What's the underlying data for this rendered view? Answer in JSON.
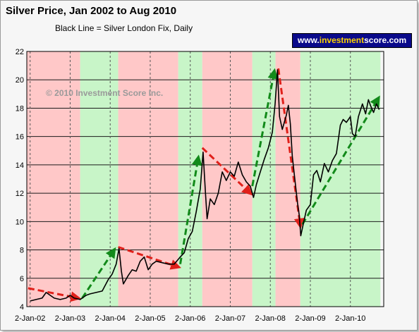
{
  "chart_data": {
    "type": "line",
    "title": "Silver Price, Jan 2002 to Aug 2010",
    "subtitle": "Black Line = Silver London Fix, Daily",
    "watermark": "© 2010 Investment Score Inc.",
    "brand": {
      "prefix": "www.",
      "highlight": "investment",
      "suffix": "score.com"
    },
    "ylim": [
      4,
      22
    ],
    "yticks": [
      4,
      6,
      8,
      10,
      12,
      14,
      16,
      18,
      20,
      22
    ],
    "xlim": [
      2001.917,
      2010.833
    ],
    "xticks": [
      {
        "label": "2-Jan-02",
        "x": 2002.0
      },
      {
        "label": "2-Jan-03",
        "x": 2003.0
      },
      {
        "label": "2-Jan-04",
        "x": 2004.0
      },
      {
        "label": "2-Jan-05",
        "x": 2005.0
      },
      {
        "label": "2-Jan-06",
        "x": 2006.0
      },
      {
        "label": "2-Jan-07",
        "x": 2007.0
      },
      {
        "label": "2-Jan-08",
        "x": 2008.0
      },
      {
        "label": "2-Jan-09",
        "x": 2009.0
      },
      {
        "label": "2-Jan-10",
        "x": 2010.0
      }
    ],
    "grid": true,
    "legend": "none",
    "colors": {
      "bear": "#ffc8c8",
      "bull": "#c8f5c8",
      "bear_arrow": "#e0201a",
      "bull_arrow": "#128a1a",
      "line": "#000000"
    },
    "regimes": [
      {
        "type": "bear",
        "start": 2001.917,
        "end": 2003.25
      },
      {
        "type": "bull",
        "start": 2003.25,
        "end": 2004.2
      },
      {
        "type": "bear",
        "start": 2004.2,
        "end": 2005.7
      },
      {
        "type": "bull",
        "start": 2005.7,
        "end": 2006.3
      },
      {
        "type": "bear",
        "start": 2006.3,
        "end": 2007.55
      },
      {
        "type": "bull",
        "start": 2007.55,
        "end": 2008.13
      },
      {
        "type": "bear",
        "start": 2008.13,
        "end": 2008.75
      },
      {
        "type": "bull",
        "start": 2008.75,
        "end": 2010.75
      }
    ],
    "trend_arrows": [
      {
        "type": "bear",
        "from": [
          2001.95,
          5.3
        ],
        "to": [
          2003.2,
          4.6
        ]
      },
      {
        "type": "bull",
        "from": [
          2003.3,
          4.6
        ],
        "to": [
          2004.1,
          8.0
        ]
      },
      {
        "type": "bear",
        "from": [
          2004.2,
          8.2
        ],
        "to": [
          2005.7,
          6.8
        ]
      },
      {
        "type": "bull",
        "from": [
          2005.75,
          7.0
        ],
        "to": [
          2006.2,
          14.5
        ]
      },
      {
        "type": "bear",
        "from": [
          2006.3,
          15.2
        ],
        "to": [
          2007.5,
          12.0
        ]
      },
      {
        "type": "bull",
        "from": [
          2007.55,
          12.5
        ],
        "to": [
          2008.1,
          20.6
        ]
      },
      {
        "type": "bear",
        "from": [
          2008.2,
          20.8
        ],
        "to": [
          2008.75,
          9.7
        ]
      },
      {
        "type": "bull",
        "from": [
          2008.8,
          9.8
        ],
        "to": [
          2010.7,
          18.7
        ]
      }
    ],
    "series": [
      {
        "values": [
          [
            2002.0,
            4.4
          ],
          [
            2002.15,
            4.5
          ],
          [
            2002.3,
            4.6
          ],
          [
            2002.4,
            5.0
          ],
          [
            2002.5,
            4.8
          ],
          [
            2002.6,
            4.6
          ],
          [
            2002.75,
            4.5
          ],
          [
            2002.9,
            4.6
          ],
          [
            2003.0,
            4.8
          ],
          [
            2003.1,
            4.6
          ],
          [
            2003.25,
            4.5
          ],
          [
            2003.4,
            4.8
          ],
          [
            2003.5,
            4.9
          ],
          [
            2003.65,
            5.0
          ],
          [
            2003.8,
            5.1
          ],
          [
            2003.95,
            5.9
          ],
          [
            2004.05,
            6.3
          ],
          [
            2004.15,
            7.0
          ],
          [
            2004.22,
            8.1
          ],
          [
            2004.28,
            6.5
          ],
          [
            2004.33,
            5.6
          ],
          [
            2004.45,
            6.2
          ],
          [
            2004.55,
            6.6
          ],
          [
            2004.65,
            6.5
          ],
          [
            2004.75,
            7.2
          ],
          [
            2004.85,
            7.5
          ],
          [
            2004.95,
            6.6
          ],
          [
            2005.05,
            7.0
          ],
          [
            2005.15,
            7.2
          ],
          [
            2005.3,
            7.1
          ],
          [
            2005.45,
            7.0
          ],
          [
            2005.6,
            7.0
          ],
          [
            2005.75,
            7.5
          ],
          [
            2005.85,
            7.8
          ],
          [
            2005.95,
            8.8
          ],
          [
            2006.05,
            9.3
          ],
          [
            2006.15,
            10.7
          ],
          [
            2006.25,
            12.3
          ],
          [
            2006.32,
            14.9
          ],
          [
            2006.38,
            12.0
          ],
          [
            2006.42,
            10.2
          ],
          [
            2006.5,
            11.6
          ],
          [
            2006.6,
            11.2
          ],
          [
            2006.7,
            12.0
          ],
          [
            2006.8,
            13.5
          ],
          [
            2006.9,
            12.9
          ],
          [
            2007.0,
            13.5
          ],
          [
            2007.1,
            13.2
          ],
          [
            2007.2,
            14.2
          ],
          [
            2007.3,
            13.3
          ],
          [
            2007.4,
            12.8
          ],
          [
            2007.5,
            12.5
          ],
          [
            2007.58,
            11.7
          ],
          [
            2007.65,
            12.6
          ],
          [
            2007.75,
            13.5
          ],
          [
            2007.85,
            14.4
          ],
          [
            2007.95,
            15.2
          ],
          [
            2008.05,
            16.3
          ],
          [
            2008.12,
            18.3
          ],
          [
            2008.18,
            20.7
          ],
          [
            2008.23,
            17.4
          ],
          [
            2008.3,
            16.5
          ],
          [
            2008.4,
            17.5
          ],
          [
            2008.45,
            18.2
          ],
          [
            2008.5,
            16.9
          ],
          [
            2008.55,
            14.6
          ],
          [
            2008.62,
            12.8
          ],
          [
            2008.68,
            11.3
          ],
          [
            2008.72,
            10.5
          ],
          [
            2008.76,
            9.0
          ],
          [
            2008.82,
            9.8
          ],
          [
            2008.9,
            10.8
          ],
          [
            2009.0,
            11.2
          ],
          [
            2009.08,
            13.3
          ],
          [
            2009.16,
            13.6
          ],
          [
            2009.25,
            12.8
          ],
          [
            2009.35,
            14.1
          ],
          [
            2009.45,
            13.5
          ],
          [
            2009.55,
            14.3
          ],
          [
            2009.65,
            14.8
          ],
          [
            2009.75,
            16.8
          ],
          [
            2009.82,
            17.2
          ],
          [
            2009.9,
            17.0
          ],
          [
            2010.0,
            17.4
          ],
          [
            2010.05,
            16.2
          ],
          [
            2010.12,
            16.0
          ],
          [
            2010.2,
            17.4
          ],
          [
            2010.3,
            18.3
          ],
          [
            2010.38,
            17.6
          ],
          [
            2010.45,
            18.6
          ],
          [
            2010.5,
            18.2
          ],
          [
            2010.58,
            17.7
          ],
          [
            2010.65,
            18.3
          ],
          [
            2010.72,
            17.9
          ]
        ]
      }
    ]
  }
}
